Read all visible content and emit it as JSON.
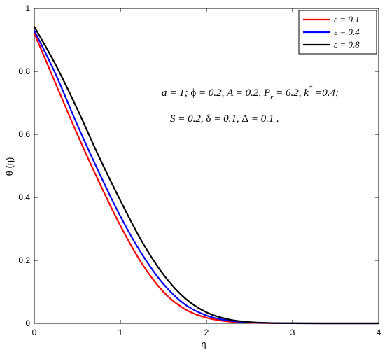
{
  "chart_data": {
    "type": "line",
    "xlabel": "η",
    "ylabel": "θ (η)",
    "xlim": [
      0,
      4
    ],
    "ylim": [
      0,
      1
    ],
    "xticks": [
      "0",
      "1",
      "2",
      "3",
      "4"
    ],
    "yticks": [
      "0",
      "0.2",
      "0.4",
      "0.6",
      "0.8",
      "1"
    ],
    "grid": false,
    "legend_position": "top-right",
    "annotation_lines": [
      "a = 1; ϕ = 0.2, A = 0.2, P_r = 6.2, k* =0.4;",
      "S = 0.2, δ = 0.1, Δ = 0.1 ."
    ],
    "series": [
      {
        "name": "ε = 0.1",
        "color": "#ff0000",
        "x": [
          0,
          0.25,
          0.5,
          0.75,
          1.0,
          1.25,
          1.5,
          1.75,
          2.0,
          2.25,
          2.5,
          2.75,
          3.0,
          3.5,
          4.0
        ],
        "y": [
          0.921,
          0.76,
          0.6,
          0.45,
          0.31,
          0.19,
          0.1,
          0.045,
          0.018,
          0.006,
          0.002,
          0.0005,
          0.0001,
          0,
          0
        ]
      },
      {
        "name": "ε = 0.4",
        "color": "#0000ff",
        "x": [
          0,
          0.25,
          0.5,
          0.75,
          1.0,
          1.25,
          1.5,
          1.75,
          2.0,
          2.25,
          2.5,
          2.75,
          3.0,
          3.5,
          4.0
        ],
        "y": [
          0.93,
          0.79,
          0.63,
          0.48,
          0.34,
          0.22,
          0.125,
          0.06,
          0.025,
          0.009,
          0.003,
          0.001,
          0.0002,
          0,
          0
        ]
      },
      {
        "name": "ε = 0.8",
        "color": "#000000",
        "x": [
          0,
          0.25,
          0.5,
          0.75,
          1.0,
          1.25,
          1.5,
          1.75,
          2.0,
          2.25,
          2.5,
          2.75,
          3.0,
          3.5,
          4.0
        ],
        "y": [
          0.942,
          0.82,
          0.68,
          0.53,
          0.39,
          0.26,
          0.155,
          0.08,
          0.035,
          0.013,
          0.004,
          0.0012,
          0.0003,
          0,
          0
        ]
      }
    ]
  }
}
